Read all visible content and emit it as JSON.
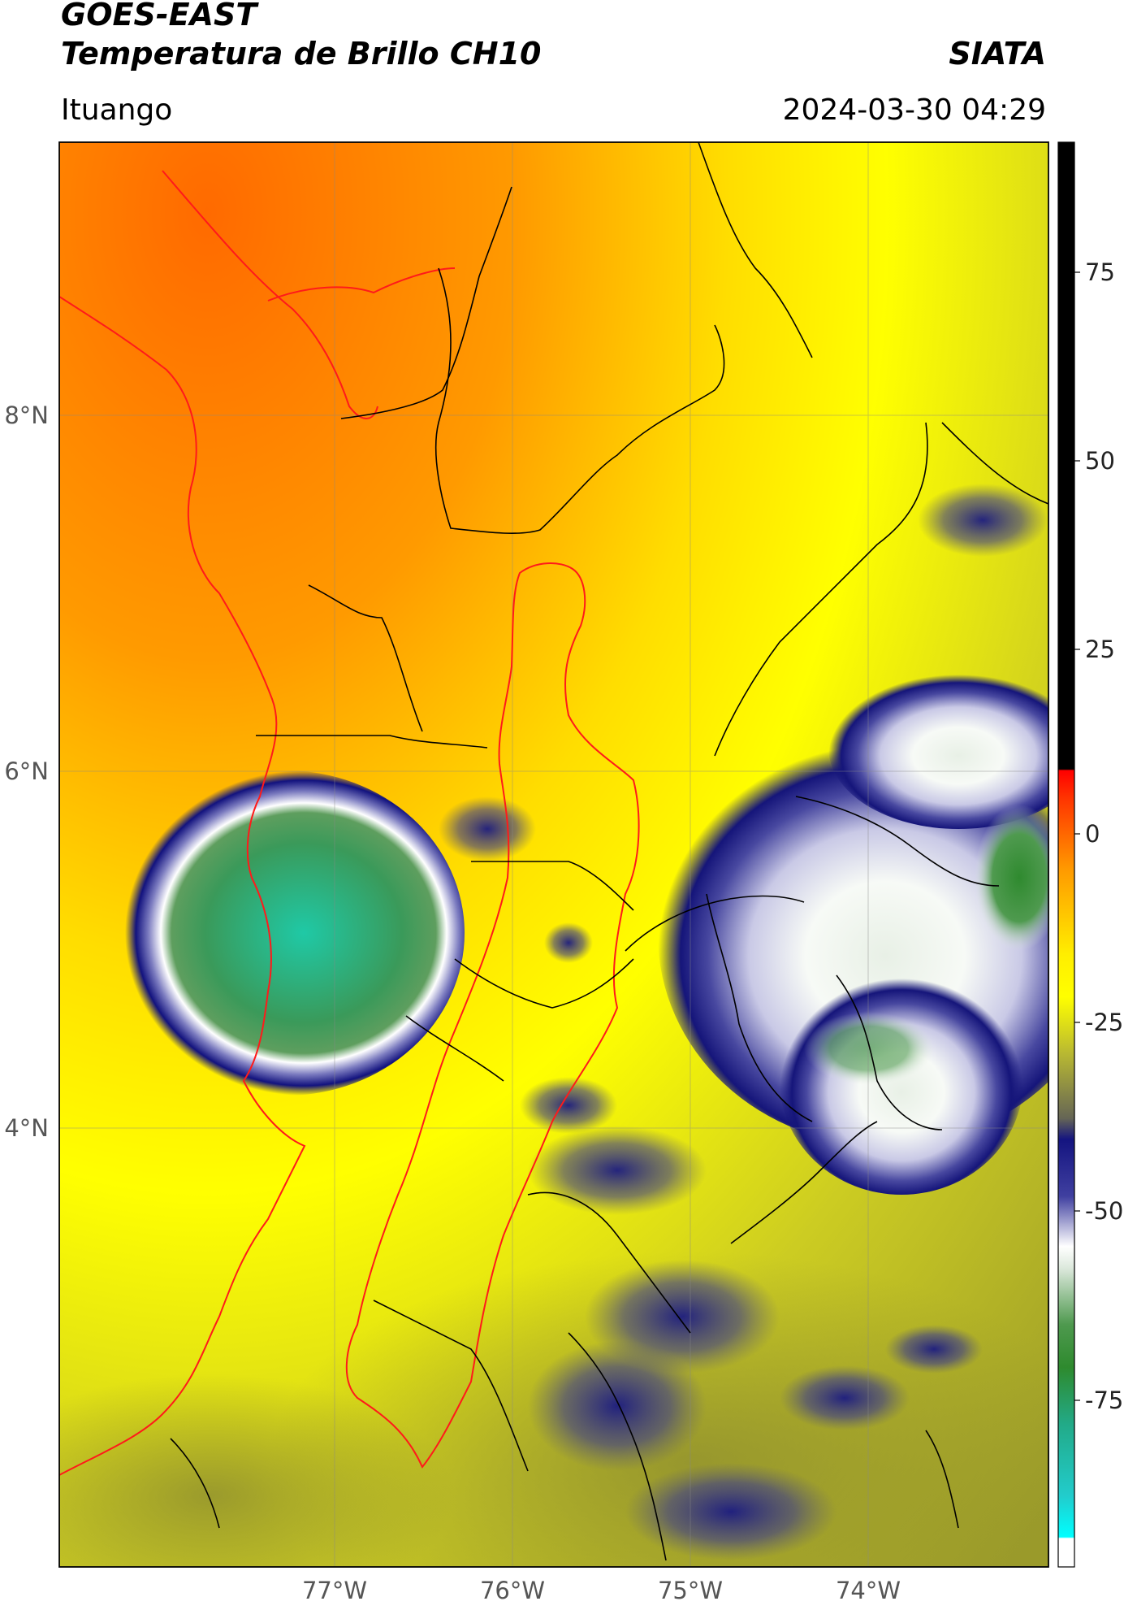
{
  "header": {
    "satellite": "GOES-EAST",
    "product": "Temperatura de Brillo CH10",
    "agency": "SIATA",
    "location": "Ituango",
    "datetime": "2024-03-30 04:29"
  },
  "map": {
    "lon_labels": [
      "77°W",
      "76°W",
      "75°W",
      "74°W"
    ],
    "lat_labels": [
      "8°N",
      "6°N",
      "4°N"
    ]
  },
  "colorbar": {
    "ticks": [
      "75",
      "50",
      "25",
      "0",
      "-25",
      "-50",
      "-75"
    ],
    "colors": {
      "warm_top": "#000000",
      "red": "#ff1a00",
      "orange": "#ff9900",
      "yellow": "#ffff00",
      "olive": "#9a9a2a",
      "navy": "#1a1a80",
      "white": "#ffffff",
      "green": "#3c8c3c",
      "cyan": "#19e6d2"
    }
  }
}
